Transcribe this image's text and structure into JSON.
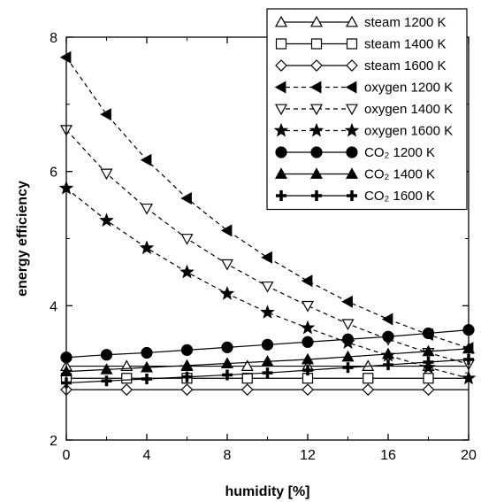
{
  "chart_data": {
    "type": "line",
    "title": "",
    "xlabel": "humidity [%]",
    "ylabel": "energy efficiency",
    "xlim": [
      0,
      20
    ],
    "ylim": [
      2,
      8
    ],
    "xticks": [
      0,
      4,
      8,
      12,
      16,
      20
    ],
    "yticks": [
      2,
      4,
      6,
      8
    ],
    "grid": false,
    "legend_position": "top-right",
    "series": [
      {
        "name": "steam 1200 K",
        "line": "solid",
        "marker": "triangle-up-open",
        "x": [
          0,
          3,
          6,
          9,
          12,
          15,
          18
        ],
        "y": [
          3.1,
          3.1,
          3.1,
          3.1,
          3.1,
          3.1,
          3.1
        ]
      },
      {
        "name": "steam 1400 K",
        "line": "solid",
        "marker": "square-open",
        "x": [
          0,
          3,
          6,
          9,
          12,
          15,
          18
        ],
        "y": [
          2.92,
          2.92,
          2.92,
          2.92,
          2.92,
          2.92,
          2.92
        ]
      },
      {
        "name": "steam 1600 K",
        "line": "solid",
        "marker": "diamond-open",
        "x": [
          0,
          3,
          6,
          9,
          12,
          15,
          18
        ],
        "y": [
          2.75,
          2.75,
          2.75,
          2.75,
          2.75,
          2.75,
          2.75
        ]
      },
      {
        "name": "oxygen 1200 K",
        "line": "dashed",
        "marker": "triangle-left-filled",
        "x": [
          0,
          2,
          4,
          6,
          8,
          10,
          12,
          14,
          16,
          18,
          20
        ],
        "y": [
          7.7,
          6.85,
          6.17,
          5.6,
          5.12,
          4.72,
          4.37,
          4.06,
          3.8,
          3.57,
          3.37
        ]
      },
      {
        "name": "oxygen 1400 K",
        "line": "dashed",
        "marker": "triangle-down-open",
        "x": [
          0,
          2,
          4,
          6,
          8,
          10,
          12,
          14,
          16,
          18,
          20
        ],
        "y": [
          6.62,
          5.97,
          5.45,
          5.0,
          4.62,
          4.29,
          4.0,
          3.73,
          3.5,
          3.3,
          3.13
        ]
      },
      {
        "name": "oxygen 1600 K",
        "line": "dashed",
        "marker": "star-filled",
        "x": [
          0,
          2,
          4,
          6,
          8,
          10,
          12,
          14,
          16,
          18,
          20
        ],
        "y": [
          5.75,
          5.27,
          4.86,
          4.5,
          4.18,
          3.9,
          3.67,
          3.45,
          3.26,
          3.08,
          2.92
        ]
      },
      {
        "name": "CO₂ 1200 K",
        "line": "solid",
        "marker": "circle-filled",
        "x": [
          0,
          2,
          4,
          6,
          8,
          10,
          12,
          14,
          16,
          18,
          20
        ],
        "y": [
          3.23,
          3.27,
          3.3,
          3.34,
          3.38,
          3.42,
          3.46,
          3.5,
          3.54,
          3.59,
          3.64
        ]
      },
      {
        "name": "CO₂ 1400 K",
        "line": "solid",
        "marker": "triangle-up-filled",
        "x": [
          0,
          2,
          4,
          6,
          8,
          10,
          12,
          14,
          16,
          18,
          20
        ],
        "y": [
          3.02,
          3.05,
          3.08,
          3.11,
          3.14,
          3.17,
          3.2,
          3.24,
          3.28,
          3.32,
          3.36
        ]
      },
      {
        "name": "CO₂ 1600 K",
        "line": "solid",
        "marker": "plus-filled",
        "x": [
          0,
          2,
          4,
          6,
          8,
          10,
          12,
          14,
          16,
          18,
          20
        ],
        "y": [
          2.85,
          2.88,
          2.91,
          2.94,
          2.97,
          3.0,
          3.04,
          3.08,
          3.12,
          3.16,
          3.2
        ]
      }
    ]
  }
}
